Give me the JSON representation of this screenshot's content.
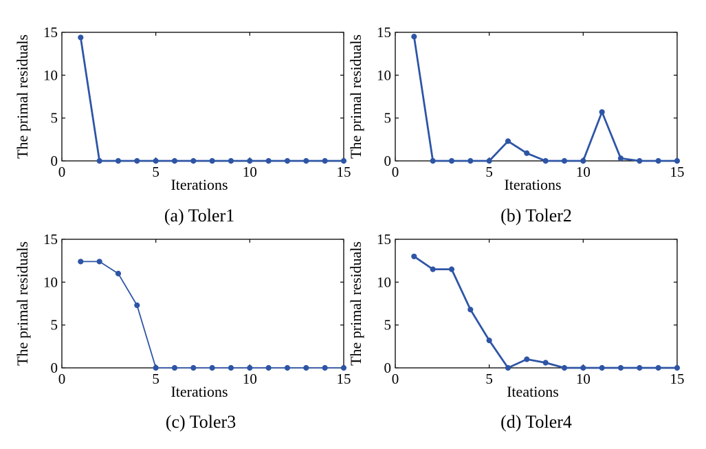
{
  "colors": {
    "series": "#2e55a5",
    "axis": "#000000"
  },
  "chart_data": [
    {
      "type": "line",
      "caption": "(a) Toler1",
      "xlabel": "Iterations",
      "ylabel": "The primal residuals",
      "xlim": [
        0,
        15
      ],
      "ylim": [
        0,
        15
      ],
      "xticks": [
        0,
        5,
        10,
        15
      ],
      "yticks": [
        0,
        5,
        10,
        15
      ],
      "grid": false,
      "series": [
        {
          "name": "Toler1",
          "x": [
            1,
            2,
            3,
            4,
            5,
            6,
            7,
            8,
            9,
            10,
            11,
            12,
            13,
            14,
            15
          ],
          "y": [
            14.4,
            0,
            0,
            0,
            0,
            0,
            0,
            0,
            0,
            0,
            0,
            0,
            0,
            0,
            0
          ]
        }
      ]
    },
    {
      "type": "line",
      "caption": "(b) Toler2",
      "xlabel": "Iterations",
      "ylabel": "The primal residuals",
      "xlim": [
        0,
        15
      ],
      "ylim": [
        0,
        15
      ],
      "xticks": [
        0,
        5,
        10,
        15
      ],
      "yticks": [
        0,
        5,
        10,
        15
      ],
      "grid": false,
      "series": [
        {
          "name": "Toler2",
          "x": [
            1,
            2,
            3,
            4,
            5,
            6,
            7,
            8,
            9,
            10,
            11,
            12,
            13,
            14,
            15
          ],
          "y": [
            14.5,
            0,
            0,
            0,
            0,
            2.3,
            0.9,
            0,
            0,
            0,
            5.7,
            0.3,
            0,
            0,
            0
          ]
        }
      ]
    },
    {
      "type": "line",
      "caption": "(c) Toler3",
      "xlabel": "Iterations",
      "ylabel": "The primal residuals",
      "xlim": [
        0,
        15
      ],
      "ylim": [
        0,
        15
      ],
      "xticks": [
        0,
        5,
        10,
        15
      ],
      "yticks": [
        0,
        5,
        10,
        15
      ],
      "grid": false,
      "series": [
        {
          "name": "Toler3",
          "x": [
            1,
            2,
            3,
            4,
            5,
            6,
            7,
            8,
            9,
            10,
            11,
            12,
            13,
            14,
            15
          ],
          "y": [
            12.4,
            12.4,
            11.0,
            7.3,
            0,
            0,
            0,
            0,
            0,
            0,
            0,
            0,
            0,
            0,
            0
          ]
        }
      ]
    },
    {
      "type": "line",
      "caption": "(d) Toler4",
      "xlabel": "Iteations",
      "ylabel": "The primal residuals",
      "xlim": [
        0,
        15
      ],
      "ylim": [
        0,
        15
      ],
      "xticks": [
        0,
        5,
        10,
        15
      ],
      "yticks": [
        0,
        5,
        10,
        15
      ],
      "grid": false,
      "series": [
        {
          "name": "Toler4",
          "x": [
            1,
            2,
            3,
            4,
            5,
            6,
            7,
            8,
            9,
            10,
            11,
            12,
            13,
            14,
            15
          ],
          "y": [
            13.0,
            11.5,
            11.5,
            6.8,
            3.2,
            0,
            1.0,
            0.6,
            0,
            0,
            0,
            0,
            0,
            0,
            0
          ]
        }
      ]
    }
  ]
}
